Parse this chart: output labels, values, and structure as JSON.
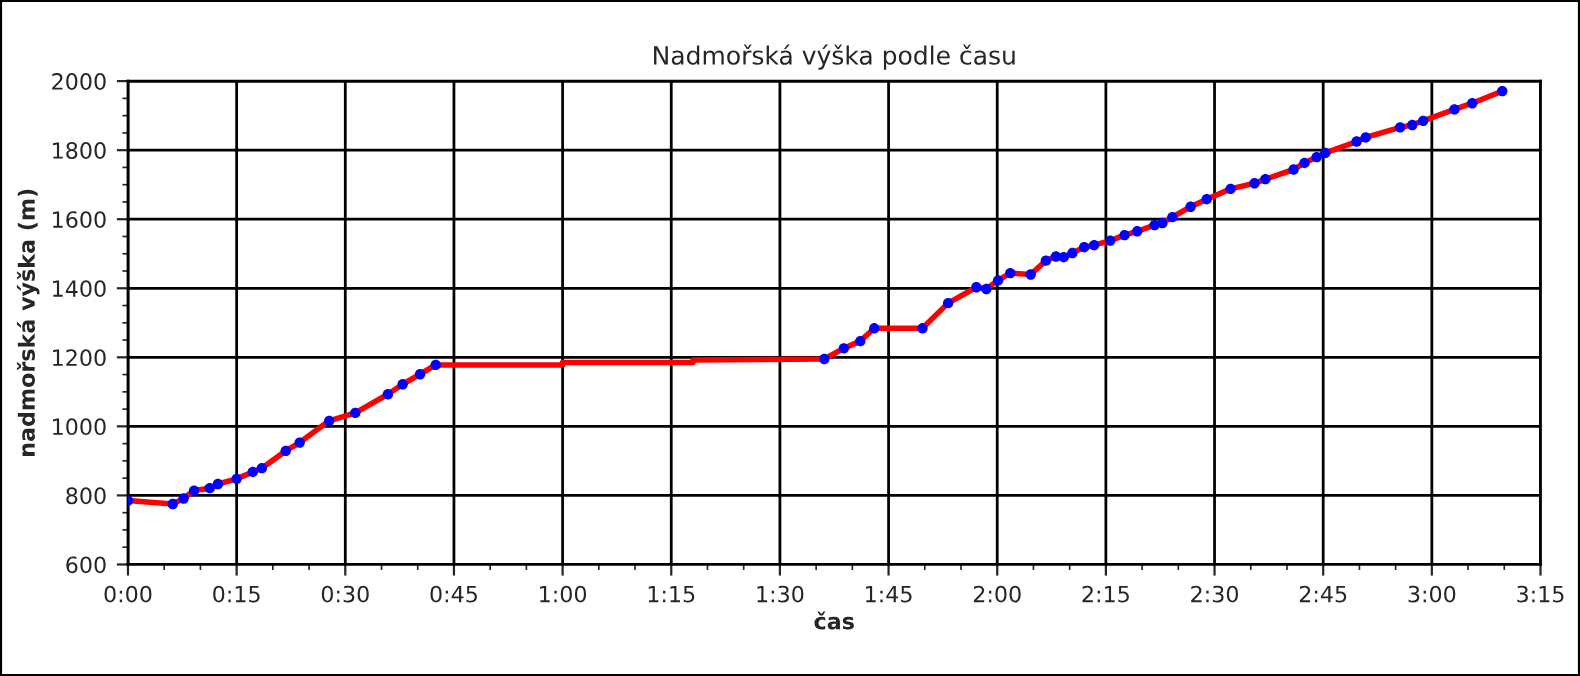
{
  "chart_data": {
    "type": "line",
    "title": "Nadmořská výška podle času",
    "xlabel": "čas",
    "ylabel": "nadmořská výška (m)",
    "xlim": [
      0,
      3.25
    ],
    "xticks": [
      {
        "value": 0,
        "label": "0:00"
      },
      {
        "value": 0.25,
        "label": "0:15"
      },
      {
        "value": 0.5,
        "label": "0:30"
      },
      {
        "value": 0.75,
        "label": "0:45"
      },
      {
        "value": 1,
        "label": "1:00"
      },
      {
        "value": 1.25,
        "label": "1:15"
      },
      {
        "value": 1.5,
        "label": "1:30"
      },
      {
        "value": 1.75,
        "label": "1:45"
      },
      {
        "value": 2,
        "label": "2:00"
      },
      {
        "value": 2.25,
        "label": "2:15"
      },
      {
        "value": 2.5,
        "label": "2:30"
      },
      {
        "value": 2.75,
        "label": "2:45"
      },
      {
        "value": 3,
        "label": "3:00"
      },
      {
        "value": 3.25,
        "label": "3:15"
      }
    ],
    "ylim": [
      600,
      2000
    ],
    "yticks": [
      600,
      800,
      1000,
      1200,
      1400,
      1600,
      1800,
      2000
    ],
    "grid": true,
    "series": [
      {
        "color": "#ff0000",
        "marker": "none",
        "line_style": "solid",
        "x": [
          0,
          0.103,
          0.128,
          0.152,
          0.188,
          0.207,
          0.25,
          0.287,
          0.308,
          0.363,
          0.395,
          0.463,
          0.523,
          0.598,
          0.632,
          0.672,
          0.708,
          1.0,
          1.0,
          1.3,
          1.3,
          1.602,
          1.647,
          1.685,
          1.717,
          1.828,
          1.887,
          1.952,
          1.975,
          2.002,
          2.03,
          2.077,
          2.112,
          2.135,
          2.153,
          2.173,
          2.2,
          2.223,
          2.26,
          2.293,
          2.322,
          2.362,
          2.38,
          2.403,
          2.445,
          2.482,
          2.537,
          2.592,
          2.617,
          2.682,
          2.707,
          2.735,
          2.755,
          2.827,
          2.848,
          2.927,
          2.955,
          2.98,
          3.052,
          3.093,
          3.162
        ],
        "values": [
          785,
          775,
          791,
          814,
          821,
          833,
          848,
          868,
          879,
          929,
          953,
          1016,
          1039,
          1093,
          1122,
          1151,
          1178,
          1178,
          1185,
          1185,
          1192,
          1195,
          1226,
          1247,
          1284,
          1284,
          1357,
          1403,
          1398,
          1423,
          1444,
          1440,
          1480,
          1492,
          1490,
          1502,
          1519,
          1525,
          1538,
          1554,
          1565,
          1583,
          1589,
          1606,
          1636,
          1658,
          1688,
          1704,
          1716,
          1744,
          1763,
          1780,
          1792,
          1825,
          1837,
          1866,
          1873,
          1885,
          1918,
          1936,
          1971
        ]
      },
      {
        "type": "scatter",
        "color": "#0000ff",
        "marker": "circle",
        "x": [
          0,
          0.103,
          0.128,
          0.152,
          0.188,
          0.207,
          0.25,
          0.287,
          0.308,
          0.363,
          0.395,
          0.463,
          0.523,
          0.598,
          0.632,
          0.672,
          0.708,
          1.602,
          1.647,
          1.685,
          1.717,
          1.828,
          1.887,
          1.952,
          1.975,
          2.002,
          2.03,
          2.077,
          2.112,
          2.135,
          2.153,
          2.173,
          2.2,
          2.223,
          2.26,
          2.293,
          2.322,
          2.362,
          2.38,
          2.403,
          2.445,
          2.482,
          2.537,
          2.592,
          2.617,
          2.682,
          2.707,
          2.735,
          2.755,
          2.827,
          2.848,
          2.927,
          2.955,
          2.98,
          3.052,
          3.093,
          3.162
        ],
        "values": [
          785,
          775,
          791,
          814,
          821,
          833,
          848,
          868,
          879,
          929,
          953,
          1016,
          1039,
          1093,
          1122,
          1151,
          1178,
          1195,
          1226,
          1247,
          1284,
          1284,
          1357,
          1403,
          1398,
          1423,
          1444,
          1440,
          1480,
          1492,
          1490,
          1502,
          1519,
          1525,
          1538,
          1554,
          1565,
          1583,
          1589,
          1606,
          1636,
          1658,
          1688,
          1704,
          1716,
          1744,
          1763,
          1780,
          1792,
          1825,
          1837,
          1866,
          1873,
          1885,
          1918,
          1936,
          1971
        ]
      }
    ]
  }
}
